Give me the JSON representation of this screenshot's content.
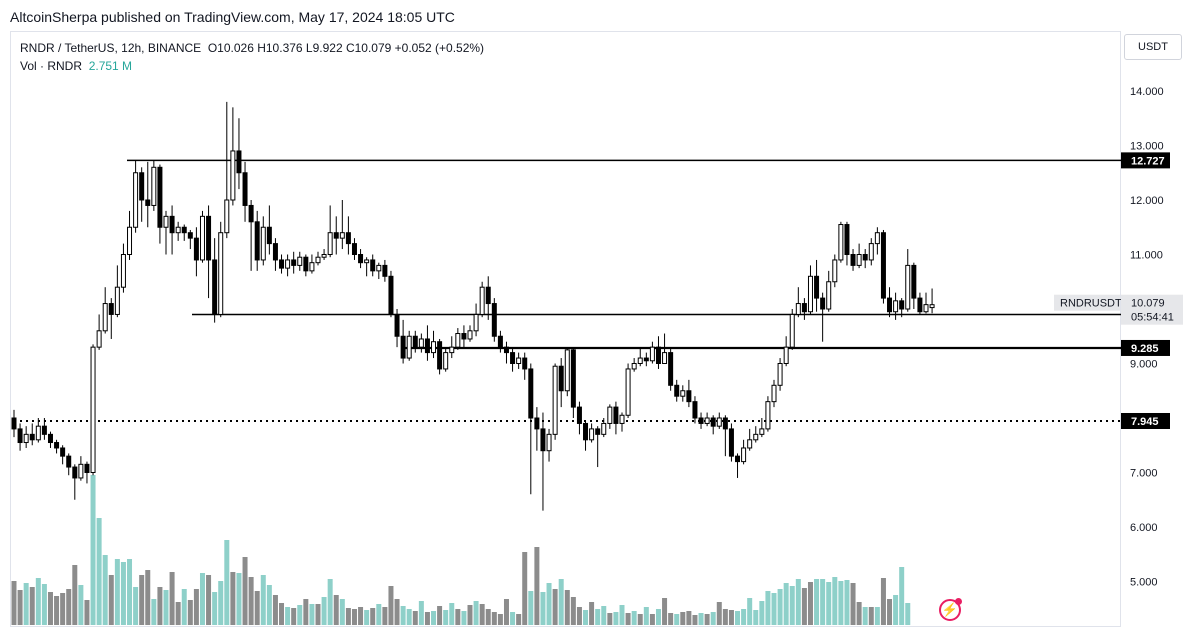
{
  "publish_line": "AltcoinSherpa published on TradingView.com, May 17, 2024 18:05 UTC",
  "legend": {
    "symbol": "RNDR / TetherUS, 12h, BINANCE",
    "ohlc": "O10.026  H10.376  L9.922  C10.079  +0.052 (+0.52%)",
    "vol_label": "Vol · RNDR",
    "vol_value": "2.751 M"
  },
  "axis": {
    "currency": "USDT",
    "ticks": [
      "14.000",
      "13.000",
      "12.000",
      "11.000",
      "9.000",
      "7.000",
      "6.000",
      "5.000"
    ],
    "tick_values": [
      14,
      13,
      12,
      11,
      9,
      7,
      6,
      5
    ]
  },
  "price_tag": {
    "symbol": "RNDRUSDT",
    "price": "10.079",
    "countdown": "05:54:41"
  },
  "levels": [
    {
      "label": "12.727",
      "value": 12.727,
      "style": "solid"
    },
    {
      "label": "9.900",
      "value": 9.9,
      "style": "solid"
    },
    {
      "label": "9.285",
      "value": 9.285,
      "style": "solid"
    },
    {
      "label": "7.945",
      "value": 7.945,
      "style": "dotted"
    }
  ],
  "colors": {
    "up": "#ffffff",
    "down": "#000000",
    "vol_up": "#8ed0c9",
    "vol_down": "#8c8c8c",
    "line": "#000000",
    "text": "#131722"
  },
  "icons": {
    "bolt": "lightning-icon"
  },
  "chart_data": {
    "type": "candlestick",
    "title": "RNDR / TetherUS, 12h, BINANCE",
    "ylabel": "USDT",
    "ylim": [
      4.35,
      15.0
    ],
    "candles": [
      [
        8.0,
        7.8,
        8.15,
        7.65
      ],
      [
        7.8,
        7.55,
        7.9,
        7.4
      ],
      [
        7.55,
        7.7,
        7.85,
        7.45
      ],
      [
        7.7,
        7.6,
        7.9,
        7.5
      ],
      [
        7.6,
        7.85,
        8.0,
        7.55
      ],
      [
        7.85,
        7.7,
        8.0,
        7.6
      ],
      [
        7.7,
        7.55,
        7.75,
        7.45
      ],
      [
        7.55,
        7.45,
        7.6,
        7.35
      ],
      [
        7.45,
        7.3,
        7.5,
        7.15
      ],
      [
        7.3,
        7.1,
        7.35,
        6.95
      ],
      [
        7.1,
        6.9,
        7.15,
        6.5
      ],
      [
        6.9,
        7.15,
        7.3,
        6.85
      ],
      [
        7.15,
        7.0,
        7.2,
        6.8
      ],
      [
        7.0,
        9.3,
        9.35,
        6.95
      ],
      [
        9.3,
        9.6,
        9.9,
        9.25
      ],
      [
        9.6,
        10.1,
        10.4,
        9.55
      ],
      [
        10.1,
        9.9,
        10.2,
        9.45
      ],
      [
        9.9,
        10.4,
        10.8,
        9.85
      ],
      [
        10.4,
        11.0,
        11.2,
        10.3
      ],
      [
        11.0,
        11.5,
        11.8,
        10.9
      ],
      [
        11.5,
        12.5,
        12.73,
        11.4
      ],
      [
        12.5,
        12.0,
        12.6,
        11.6
      ],
      [
        12.0,
        11.9,
        12.7,
        11.5
      ],
      [
        11.9,
        12.6,
        12.73,
        11.8
      ],
      [
        12.6,
        11.5,
        12.65,
        11.2
      ],
      [
        11.5,
        11.7,
        11.8,
        11.0
      ],
      [
        11.7,
        11.4,
        11.9,
        11.0
      ],
      [
        11.4,
        11.5,
        11.6,
        11.25
      ],
      [
        11.5,
        11.4,
        11.55,
        11.25
      ],
      [
        11.4,
        11.3,
        11.45,
        11.1
      ],
      [
        11.3,
        10.9,
        11.5,
        10.6
      ],
      [
        10.9,
        11.7,
        11.8,
        10.85
      ],
      [
        11.7,
        10.9,
        11.9,
        10.2
      ],
      [
        10.9,
        9.9,
        11.3,
        9.75
      ],
      [
        9.9,
        11.4,
        11.6,
        9.85
      ],
      [
        11.4,
        12.0,
        13.8,
        11.3
      ],
      [
        12.0,
        12.9,
        13.7,
        11.9
      ],
      [
        12.9,
        12.5,
        13.5,
        12.2
      ],
      [
        12.5,
        11.9,
        12.7,
        11.6
      ],
      [
        11.9,
        11.6,
        12.0,
        10.7
      ],
      [
        11.6,
        10.9,
        11.8,
        10.7
      ],
      [
        10.9,
        11.5,
        11.7,
        10.8
      ],
      [
        11.5,
        11.2,
        11.9,
        11.0
      ],
      [
        11.2,
        10.9,
        11.3,
        10.7
      ],
      [
        10.9,
        10.75,
        11.0,
        10.65
      ],
      [
        10.75,
        10.9,
        11.0,
        10.6
      ],
      [
        10.9,
        10.8,
        11.05,
        10.65
      ],
      [
        10.8,
        10.95,
        11.05,
        10.7
      ],
      [
        10.95,
        10.7,
        11.0,
        10.6
      ],
      [
        10.7,
        10.85,
        11.0,
        10.65
      ],
      [
        10.85,
        10.95,
        11.05,
        10.8
      ],
      [
        10.95,
        11.0,
        11.1,
        10.9
      ],
      [
        11.0,
        11.4,
        11.9,
        10.95
      ],
      [
        11.4,
        11.3,
        11.7,
        11.0
      ],
      [
        11.3,
        11.4,
        12.0,
        11.1
      ],
      [
        11.4,
        11.2,
        11.7,
        11.0
      ],
      [
        11.2,
        11.0,
        11.3,
        10.9
      ],
      [
        11.0,
        10.85,
        11.1,
        10.75
      ],
      [
        10.85,
        10.9,
        10.95,
        10.6
      ],
      [
        10.9,
        10.7,
        11.0,
        10.6
      ],
      [
        10.7,
        10.8,
        10.85,
        10.55
      ],
      [
        10.8,
        10.6,
        10.9,
        10.5
      ],
      [
        10.6,
        9.9,
        10.7,
        9.85
      ],
      [
        9.9,
        9.5,
        10.0,
        9.3
      ],
      [
        9.5,
        9.1,
        9.8,
        9.0
      ],
      [
        9.1,
        9.5,
        9.6,
        9.05
      ],
      [
        9.5,
        9.3,
        9.6,
        9.2
      ],
      [
        9.3,
        9.45,
        9.55,
        9.2
      ],
      [
        9.45,
        9.2,
        9.7,
        9.05
      ],
      [
        9.2,
        9.4,
        9.6,
        9.1
      ],
      [
        9.4,
        8.9,
        9.45,
        8.8
      ],
      [
        8.9,
        9.2,
        9.3,
        8.85
      ],
      [
        9.2,
        9.3,
        9.5,
        9.1
      ],
      [
        9.3,
        9.55,
        9.65,
        9.25
      ],
      [
        9.55,
        9.45,
        9.7,
        9.3
      ],
      [
        9.45,
        9.6,
        9.7,
        9.4
      ],
      [
        9.6,
        9.9,
        10.1,
        9.5
      ],
      [
        9.9,
        10.4,
        10.5,
        9.85
      ],
      [
        10.4,
        10.1,
        10.6,
        9.8
      ],
      [
        10.1,
        9.5,
        10.2,
        9.4
      ],
      [
        9.5,
        9.3,
        9.6,
        9.2
      ],
      [
        9.3,
        9.2,
        9.4,
        9.0
      ],
      [
        9.2,
        9.0,
        9.3,
        8.85
      ],
      [
        9.0,
        9.1,
        9.2,
        8.9
      ],
      [
        9.1,
        8.9,
        9.2,
        8.7
      ],
      [
        8.9,
        8.0,
        9.0,
        6.6
      ],
      [
        8.0,
        7.8,
        8.2,
        7.4
      ],
      [
        7.8,
        7.4,
        8.1,
        6.3
      ],
      [
        7.4,
        7.7,
        7.8,
        7.2
      ],
      [
        7.7,
        8.95,
        9.0,
        7.6
      ],
      [
        8.95,
        8.5,
        9.1,
        8.2
      ],
      [
        8.5,
        9.25,
        9.3,
        8.4
      ],
      [
        9.25,
        8.2,
        9.3,
        8.0
      ],
      [
        8.2,
        7.9,
        8.3,
        7.7
      ],
      [
        7.9,
        7.6,
        7.95,
        7.4
      ],
      [
        7.6,
        7.8,
        7.9,
        7.55
      ],
      [
        7.8,
        7.7,
        7.85,
        7.1
      ],
      [
        7.7,
        7.9,
        8.0,
        7.65
      ],
      [
        7.9,
        8.2,
        8.25,
        7.8
      ],
      [
        8.2,
        7.9,
        8.3,
        7.7
      ],
      [
        7.9,
        8.05,
        8.1,
        7.75
      ],
      [
        8.05,
        8.9,
        9.0,
        8.0
      ],
      [
        8.9,
        9.0,
        9.1,
        8.85
      ],
      [
        9.0,
        9.1,
        9.3,
        8.95
      ],
      [
        9.1,
        9.05,
        9.2,
        8.95
      ],
      [
        9.05,
        9.3,
        9.4,
        9.0
      ],
      [
        9.3,
        9.0,
        9.5,
        8.9
      ],
      [
        9.0,
        9.2,
        9.55,
        9.0
      ],
      [
        9.2,
        8.6,
        9.3,
        8.5
      ],
      [
        8.6,
        8.4,
        8.7,
        8.3
      ],
      [
        8.4,
        8.5,
        8.6,
        8.3
      ],
      [
        8.5,
        8.3,
        8.7,
        8.2
      ],
      [
        8.3,
        8.0,
        8.4,
        7.9
      ],
      [
        8.0,
        7.9,
        8.1,
        7.8
      ],
      [
        7.9,
        8.0,
        8.1,
        7.85
      ],
      [
        8.0,
        7.85,
        8.05,
        7.7
      ],
      [
        7.85,
        8.0,
        8.1,
        7.8
      ],
      [
        8.0,
        7.8,
        8.05,
        7.3
      ],
      [
        7.8,
        7.3,
        7.9,
        7.2
      ],
      [
        7.3,
        7.2,
        7.35,
        6.9
      ],
      [
        7.2,
        7.45,
        7.6,
        7.15
      ],
      [
        7.45,
        7.6,
        7.8,
        7.4
      ],
      [
        7.6,
        7.7,
        7.85,
        7.55
      ],
      [
        7.7,
        7.8,
        8.0,
        7.65
      ],
      [
        7.8,
        8.3,
        8.4,
        7.75
      ],
      [
        8.3,
        8.6,
        8.7,
        8.2
      ],
      [
        8.6,
        9.0,
        9.1,
        8.5
      ],
      [
        9.0,
        9.3,
        9.5,
        8.95
      ],
      [
        9.3,
        9.9,
        10.0,
        9.25
      ],
      [
        9.9,
        10.1,
        10.4,
        9.85
      ],
      [
        10.1,
        9.95,
        10.2,
        9.8
      ],
      [
        9.95,
        10.6,
        10.8,
        9.9
      ],
      [
        10.6,
        10.2,
        10.9,
        9.95
      ],
      [
        10.2,
        10.0,
        10.3,
        9.4
      ],
      [
        10.0,
        10.5,
        10.7,
        9.95
      ],
      [
        10.5,
        10.9,
        11.0,
        10.4
      ],
      [
        10.9,
        11.55,
        11.6,
        10.85
      ],
      [
        11.55,
        11.0,
        11.6,
        10.8
      ],
      [
        11.0,
        10.8,
        11.1,
        10.7
      ],
      [
        10.8,
        11.0,
        11.2,
        10.75
      ],
      [
        11.0,
        10.9,
        11.1,
        10.75
      ],
      [
        10.9,
        11.2,
        11.3,
        10.8
      ],
      [
        11.2,
        11.4,
        11.5,
        11.0
      ],
      [
        11.4,
        10.2,
        11.45,
        10.1
      ],
      [
        10.2,
        9.95,
        10.4,
        9.85
      ],
      [
        9.95,
        10.15,
        10.3,
        9.8
      ],
      [
        10.15,
        10.0,
        10.2,
        9.85
      ],
      [
        10.0,
        10.8,
        11.1,
        9.95
      ],
      [
        10.8,
        10.2,
        10.85,
        10.0
      ],
      [
        10.2,
        9.95,
        10.3,
        9.9
      ],
      [
        9.95,
        10.08,
        10.3,
        9.92
      ],
      [
        10.026,
        10.079,
        10.376,
        9.922
      ]
    ],
    "volume": [
      [
        4.4,
        "down"
      ],
      [
        3.5,
        "down"
      ],
      [
        4.2,
        "up"
      ],
      [
        3.8,
        "down"
      ],
      [
        4.7,
        "up"
      ],
      [
        4.1,
        "up"
      ],
      [
        3.3,
        "down"
      ],
      [
        2.9,
        "down"
      ],
      [
        3.2,
        "down"
      ],
      [
        3.6,
        "down"
      ],
      [
        6.0,
        "down"
      ],
      [
        4.0,
        "up"
      ],
      [
        2.5,
        "down"
      ],
      [
        15.0,
        "up"
      ],
      [
        10.7,
        "up"
      ],
      [
        7.0,
        "up"
      ],
      [
        5.0,
        "down"
      ],
      [
        6.6,
        "up"
      ],
      [
        6.3,
        "up"
      ],
      [
        6.6,
        "up"
      ],
      [
        3.8,
        "up"
      ],
      [
        5.0,
        "down"
      ],
      [
        5.5,
        "down"
      ],
      [
        2.6,
        "up"
      ],
      [
        3.8,
        "down"
      ],
      [
        3.5,
        "up"
      ],
      [
        5.3,
        "down"
      ],
      [
        2.3,
        "down"
      ],
      [
        3.6,
        "up"
      ],
      [
        2.5,
        "down"
      ],
      [
        3.6,
        "down"
      ],
      [
        5.2,
        "up"
      ],
      [
        5.0,
        "down"
      ],
      [
        3.3,
        "up"
      ],
      [
        4.4,
        "up"
      ],
      [
        8.5,
        "up"
      ],
      [
        5.3,
        "down"
      ],
      [
        5.2,
        "up"
      ],
      [
        6.8,
        "down"
      ],
      [
        4.8,
        "down"
      ],
      [
        3.4,
        "down"
      ],
      [
        5.0,
        "up"
      ],
      [
        4.0,
        "up"
      ],
      [
        3.0,
        "down"
      ],
      [
        2.2,
        "down"
      ],
      [
        1.8,
        "up"
      ],
      [
        1.7,
        "down"
      ],
      [
        2.0,
        "up"
      ],
      [
        2.6,
        "down"
      ],
      [
        2.1,
        "up"
      ],
      [
        2.1,
        "down"
      ],
      [
        2.8,
        "up"
      ],
      [
        4.6,
        "up"
      ],
      [
        3.0,
        "down"
      ],
      [
        2.6,
        "up"
      ],
      [
        1.7,
        "down"
      ],
      [
        1.6,
        "down"
      ],
      [
        1.8,
        "down"
      ],
      [
        1.5,
        "up"
      ],
      [
        1.7,
        "down"
      ],
      [
        2.1,
        "up"
      ],
      [
        1.8,
        "down"
      ],
      [
        3.9,
        "down"
      ],
      [
        2.6,
        "down"
      ],
      [
        1.9,
        "up"
      ],
      [
        1.6,
        "up"
      ],
      [
        1.4,
        "down"
      ],
      [
        2.4,
        "up"
      ],
      [
        1.3,
        "down"
      ],
      [
        1.4,
        "up"
      ],
      [
        1.9,
        "down"
      ],
      [
        1.5,
        "up"
      ],
      [
        2.2,
        "up"
      ],
      [
        1.6,
        "down"
      ],
      [
        1.4,
        "up"
      ],
      [
        2.0,
        "down"
      ],
      [
        2.4,
        "up"
      ],
      [
        2.1,
        "down"
      ],
      [
        1.6,
        "down"
      ],
      [
        1.3,
        "down"
      ],
      [
        1.1,
        "down"
      ],
      [
        2.6,
        "down"
      ],
      [
        1.3,
        "up"
      ],
      [
        1.1,
        "down"
      ],
      [
        7.3,
        "down"
      ],
      [
        3.4,
        "up"
      ],
      [
        7.8,
        "down"
      ],
      [
        3.3,
        "up"
      ],
      [
        4.2,
        "up"
      ],
      [
        3.6,
        "down"
      ],
      [
        4.6,
        "up"
      ],
      [
        3.5,
        "down"
      ],
      [
        2.8,
        "down"
      ],
      [
        1.8,
        "down"
      ],
      [
        1.5,
        "up"
      ],
      [
        2.3,
        "down"
      ],
      [
        1.6,
        "up"
      ],
      [
        1.9,
        "up"
      ],
      [
        1.2,
        "down"
      ],
      [
        1.3,
        "up"
      ],
      [
        2.0,
        "up"
      ],
      [
        1.2,
        "down"
      ],
      [
        1.4,
        "up"
      ],
      [
        1.1,
        "down"
      ],
      [
        1.8,
        "up"
      ],
      [
        1.1,
        "down"
      ],
      [
        1.6,
        "up"
      ],
      [
        2.7,
        "down"
      ],
      [
        1.2,
        "down"
      ],
      [
        1.1,
        "up"
      ],
      [
        1.3,
        "down"
      ],
      [
        1.4,
        "down"
      ],
      [
        1.0,
        "down"
      ],
      [
        1.2,
        "up"
      ],
      [
        1.1,
        "down"
      ],
      [
        1.3,
        "up"
      ],
      [
        2.3,
        "down"
      ],
      [
        1.6,
        "down"
      ],
      [
        1.5,
        "down"
      ],
      [
        1.4,
        "up"
      ],
      [
        1.6,
        "up"
      ],
      [
        2.7,
        "up"
      ],
      [
        1.5,
        "up"
      ],
      [
        2.4,
        "up"
      ],
      [
        3.4,
        "up"
      ],
      [
        3.2,
        "up"
      ],
      [
        3.6,
        "up"
      ],
      [
        4.2,
        "up"
      ],
      [
        3.9,
        "up"
      ],
      [
        4.6,
        "up"
      ],
      [
        3.7,
        "down"
      ],
      [
        4.3,
        "down"
      ],
      [
        4.6,
        "up"
      ],
      [
        4.6,
        "up"
      ],
      [
        4.3,
        "up"
      ],
      [
        4.8,
        "up"
      ],
      [
        4.4,
        "up"
      ],
      [
        4.5,
        "up"
      ],
      [
        4.2,
        "down"
      ],
      [
        2.3,
        "down"
      ],
      [
        1.8,
        "up"
      ],
      [
        1.8,
        "down"
      ],
      [
        1.8,
        "up"
      ],
      [
        4.7,
        "down"
      ],
      [
        2.6,
        "down"
      ],
      [
        3.0,
        "up"
      ],
      [
        5.8,
        "up"
      ],
      [
        2.2,
        "up"
      ]
    ]
  }
}
